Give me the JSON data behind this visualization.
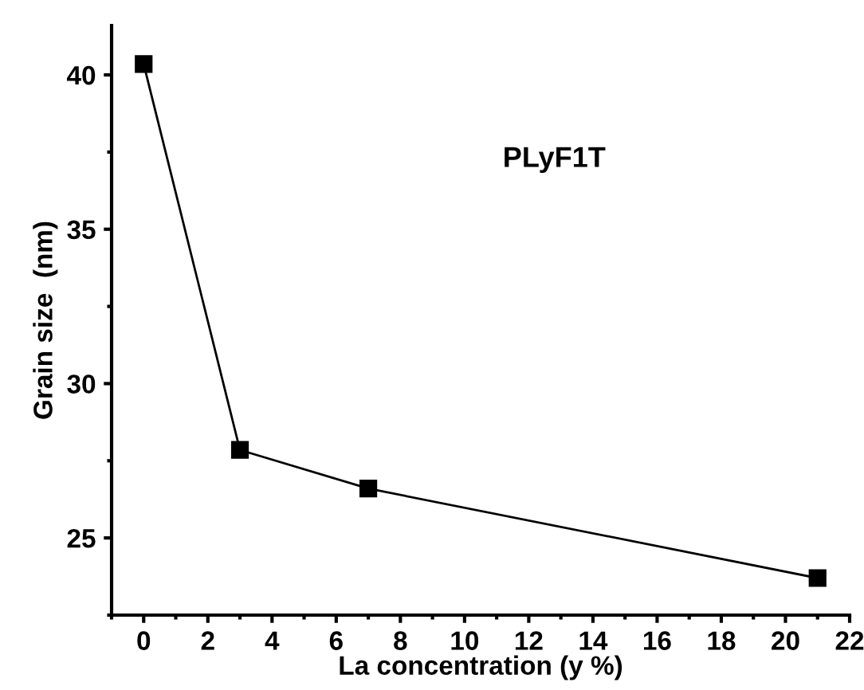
{
  "chart_data": {
    "type": "line",
    "xlabel": "La concentration (y %)",
    "ylabel": "Grain size  (nm)",
    "annotations": [
      "PLyF1T"
    ],
    "x": [
      0,
      3,
      7,
      21
    ],
    "series": [
      {
        "color": "#000000",
        "values": [
          40.35,
          27.85,
          26.6,
          23.7
        ]
      }
    ],
    "xlim": [
      -1,
      22
    ],
    "xticks": [
      0,
      2,
      4,
      6,
      8,
      10,
      12,
      14,
      16,
      18,
      20,
      22
    ],
    "ylim": [
      22.5,
      41.6
    ],
    "yticks": [
      25,
      30,
      35,
      40
    ],
    "marker": "square",
    "line_style": "solid",
    "grid": false,
    "legend": false
  }
}
